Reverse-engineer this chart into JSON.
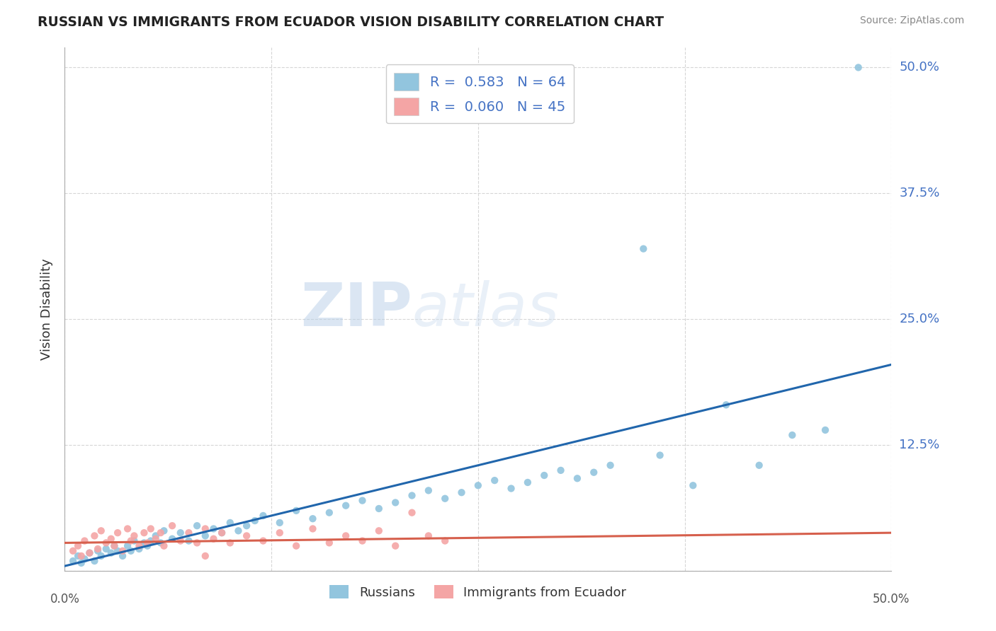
{
  "title": "RUSSIAN VS IMMIGRANTS FROM ECUADOR VISION DISABILITY CORRELATION CHART",
  "source": "Source: ZipAtlas.com",
  "ylabel": "Vision Disability",
  "xlim": [
    0.0,
    0.5
  ],
  "ylim": [
    0.0,
    0.52
  ],
  "yticks": [
    0.0,
    0.125,
    0.25,
    0.375,
    0.5
  ],
  "ytick_labels": [
    "",
    "12.5%",
    "25.0%",
    "37.5%",
    "50.0%"
  ],
  "xticks": [
    0.0,
    0.125,
    0.25,
    0.375,
    0.5
  ],
  "xtick_labels": [
    "0.0%",
    "",
    "",
    "",
    "50.0%"
  ],
  "r_russian": 0.583,
  "n_russian": 64,
  "r_ecuador": 0.06,
  "n_ecuador": 45,
  "color_russian": "#92c5de",
  "color_ecuador": "#f4a5a5",
  "trend_color_russian": "#2166ac",
  "trend_color_ecuador": "#d6604d",
  "background_color": "#ffffff",
  "grid_color": "#cccccc",
  "watermark_zip": "ZIP",
  "watermark_atlas": "atlas",
  "legend_label_russian": "Russians",
  "legend_label_ecuador": "Immigrants from Ecuador",
  "russian_x": [
    0.005,
    0.008,
    0.01,
    0.012,
    0.015,
    0.018,
    0.02,
    0.022,
    0.025,
    0.028,
    0.03,
    0.032,
    0.035,
    0.038,
    0.04,
    0.042,
    0.045,
    0.048,
    0.05,
    0.052,
    0.055,
    0.058,
    0.06,
    0.065,
    0.07,
    0.075,
    0.08,
    0.085,
    0.09,
    0.095,
    0.1,
    0.105,
    0.11,
    0.115,
    0.12,
    0.13,
    0.14,
    0.15,
    0.16,
    0.17,
    0.18,
    0.19,
    0.2,
    0.21,
    0.22,
    0.23,
    0.24,
    0.25,
    0.26,
    0.27,
    0.28,
    0.29,
    0.3,
    0.31,
    0.32,
    0.33,
    0.35,
    0.36,
    0.38,
    0.4,
    0.42,
    0.44,
    0.46,
    0.48
  ],
  "russian_y": [
    0.01,
    0.015,
    0.008,
    0.012,
    0.018,
    0.01,
    0.02,
    0.015,
    0.022,
    0.018,
    0.025,
    0.02,
    0.015,
    0.025,
    0.02,
    0.03,
    0.022,
    0.028,
    0.025,
    0.03,
    0.035,
    0.028,
    0.04,
    0.032,
    0.038,
    0.03,
    0.045,
    0.035,
    0.042,
    0.038,
    0.048,
    0.04,
    0.045,
    0.05,
    0.055,
    0.048,
    0.06,
    0.052,
    0.058,
    0.065,
    0.07,
    0.062,
    0.068,
    0.075,
    0.08,
    0.072,
    0.078,
    0.085,
    0.09,
    0.082,
    0.088,
    0.095,
    0.1,
    0.092,
    0.098,
    0.105,
    0.32,
    0.115,
    0.085,
    0.165,
    0.105,
    0.135,
    0.14,
    0.5
  ],
  "ecuador_x": [
    0.005,
    0.008,
    0.01,
    0.012,
    0.015,
    0.018,
    0.02,
    0.022,
    0.025,
    0.028,
    0.03,
    0.032,
    0.035,
    0.038,
    0.04,
    0.042,
    0.045,
    0.048,
    0.05,
    0.052,
    0.055,
    0.058,
    0.06,
    0.065,
    0.07,
    0.075,
    0.08,
    0.085,
    0.09,
    0.095,
    0.1,
    0.11,
    0.12,
    0.13,
    0.14,
    0.15,
    0.16,
    0.17,
    0.18,
    0.19,
    0.2,
    0.21,
    0.22,
    0.23,
    0.085
  ],
  "ecuador_y": [
    0.02,
    0.025,
    0.015,
    0.03,
    0.018,
    0.035,
    0.022,
    0.04,
    0.028,
    0.032,
    0.025,
    0.038,
    0.02,
    0.042,
    0.03,
    0.035,
    0.025,
    0.038,
    0.028,
    0.042,
    0.032,
    0.038,
    0.025,
    0.045,
    0.03,
    0.038,
    0.028,
    0.042,
    0.032,
    0.038,
    0.028,
    0.035,
    0.03,
    0.038,
    0.025,
    0.042,
    0.028,
    0.035,
    0.03,
    0.04,
    0.025,
    0.058,
    0.035,
    0.03,
    0.015
  ],
  "trend_russian_x0": 0.0,
  "trend_russian_y0": 0.005,
  "trend_russian_x1": 0.5,
  "trend_russian_y1": 0.205,
  "trend_ecuador_x0": 0.0,
  "trend_ecuador_y0": 0.028,
  "trend_ecuador_x1": 0.5,
  "trend_ecuador_y1": 0.038
}
